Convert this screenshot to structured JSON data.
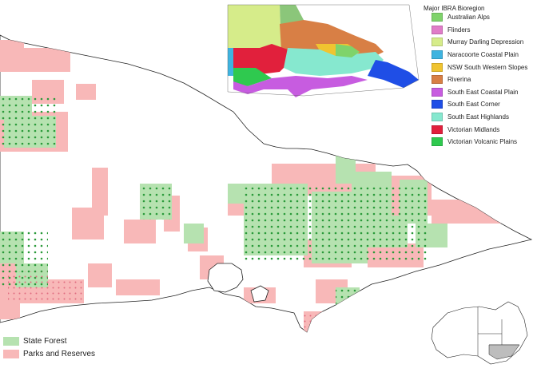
{
  "legend": {
    "title": "Major IBRA Bioregion",
    "items": [
      {
        "label": "Australian Alps",
        "color": "#7fd36b"
      },
      {
        "label": "Flinders",
        "color": "#e07cc8"
      },
      {
        "label": "Murray Darling Depression",
        "color": "#d6ec8a"
      },
      {
        "label": "Naracoorte Coastal Plain",
        "color": "#3fb4e0"
      },
      {
        "label": "NSW South Western Slopes",
        "color": "#f0c430"
      },
      {
        "label": "Riverina",
        "color": "#d87f45"
      },
      {
        "label": "South East Coastal Plain",
        "color": "#c75ce0"
      },
      {
        "label": "South East Corner",
        "color": "#1f4ee6"
      },
      {
        "label": "South East Highlands",
        "color": "#86e8cf"
      },
      {
        "label": "Victorian Midlands",
        "color": "#e1203c"
      },
      {
        "label": "Victorian Volcanic Plains",
        "color": "#2fc94f"
      }
    ]
  },
  "land_legend": {
    "items": [
      {
        "label": "State Forest",
        "color": "#b6e2b0"
      },
      {
        "label": "Parks and Reserves",
        "color": "#f8b8b8"
      }
    ]
  }
}
